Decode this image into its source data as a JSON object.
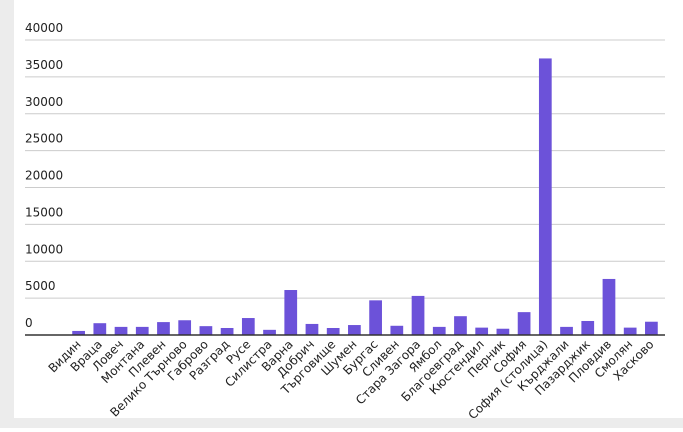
{
  "chart_data": {
    "type": "bar",
    "categories": [
      "Видин",
      "Враца",
      "Ловеч",
      "Монтана",
      "Плевен",
      "Велико Търново",
      "Габрово",
      "Разград",
      "Русе",
      "Силистра",
      "Варна",
      "Добрич",
      "Търговище",
      "Шумен",
      "Бургас",
      "Сливен",
      "Стара Загора",
      "Ямбол",
      "Благоевград",
      "Кюстендил",
      "Перник",
      "София",
      "София (столица)",
      "Кърджали",
      "Пазарджик",
      "Пловдив",
      "Смолян",
      "Хасково"
    ],
    "values": [
      550,
      1600,
      1100,
      1100,
      1750,
      2000,
      1200,
      950,
      2300,
      700,
      6100,
      1500,
      950,
      1350,
      4700,
      1250,
      5300,
      1100,
      2550,
      1000,
      850,
      3100,
      37500,
      1100,
      1900,
      7600,
      1000,
      1800
    ],
    "color": "#6c52d9",
    "ylim": [
      0,
      40000
    ],
    "yticks": [
      0,
      5000,
      10000,
      15000,
      20000,
      25000,
      30000,
      35000,
      40000
    ],
    "grid": true
  }
}
